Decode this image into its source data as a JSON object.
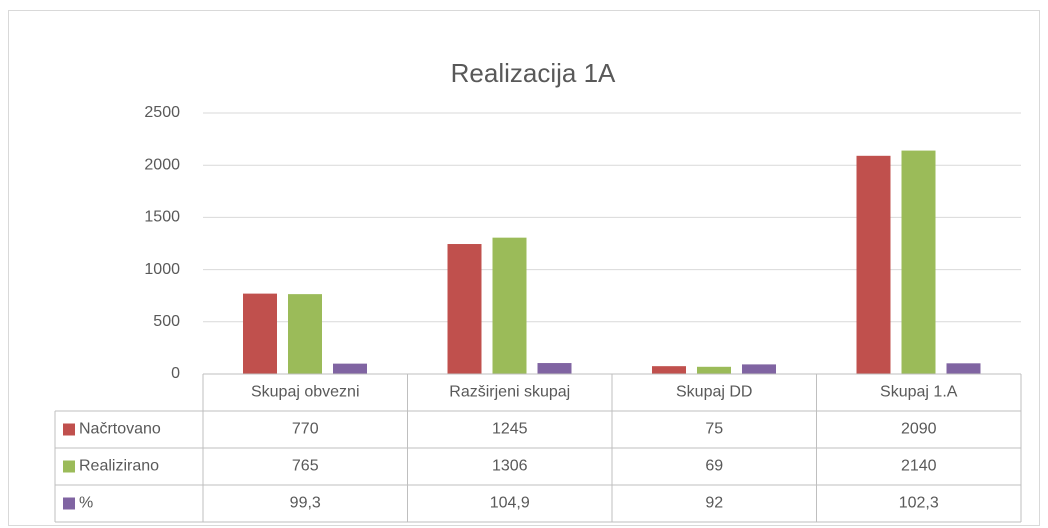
{
  "chart_data": {
    "type": "bar",
    "title": "Realizacija 1A",
    "categories": [
      "Skupaj obvezni",
      "Razširjeni skupaj",
      "Skupaj DD",
      "Skupaj 1.A"
    ],
    "series": [
      {
        "name": "Načrtovano",
        "color": "#c0504d",
        "values": [
          770,
          1245,
          75,
          2090
        ]
      },
      {
        "name": "Realizirano",
        "color": "#9bbb59",
        "values": [
          765,
          1306,
          69,
          2140
        ]
      },
      {
        "name": "%",
        "color": "#8064a2",
        "values": [
          99.3,
          104.9,
          92,
          102.3
        ],
        "value_labels": [
          "99,3",
          "104,9",
          "92",
          "102,3"
        ]
      }
    ],
    "ylim": [
      0,
      2500
    ],
    "yticks": [
      0,
      500,
      1000,
      1500,
      2000,
      2500
    ],
    "grid": true
  }
}
